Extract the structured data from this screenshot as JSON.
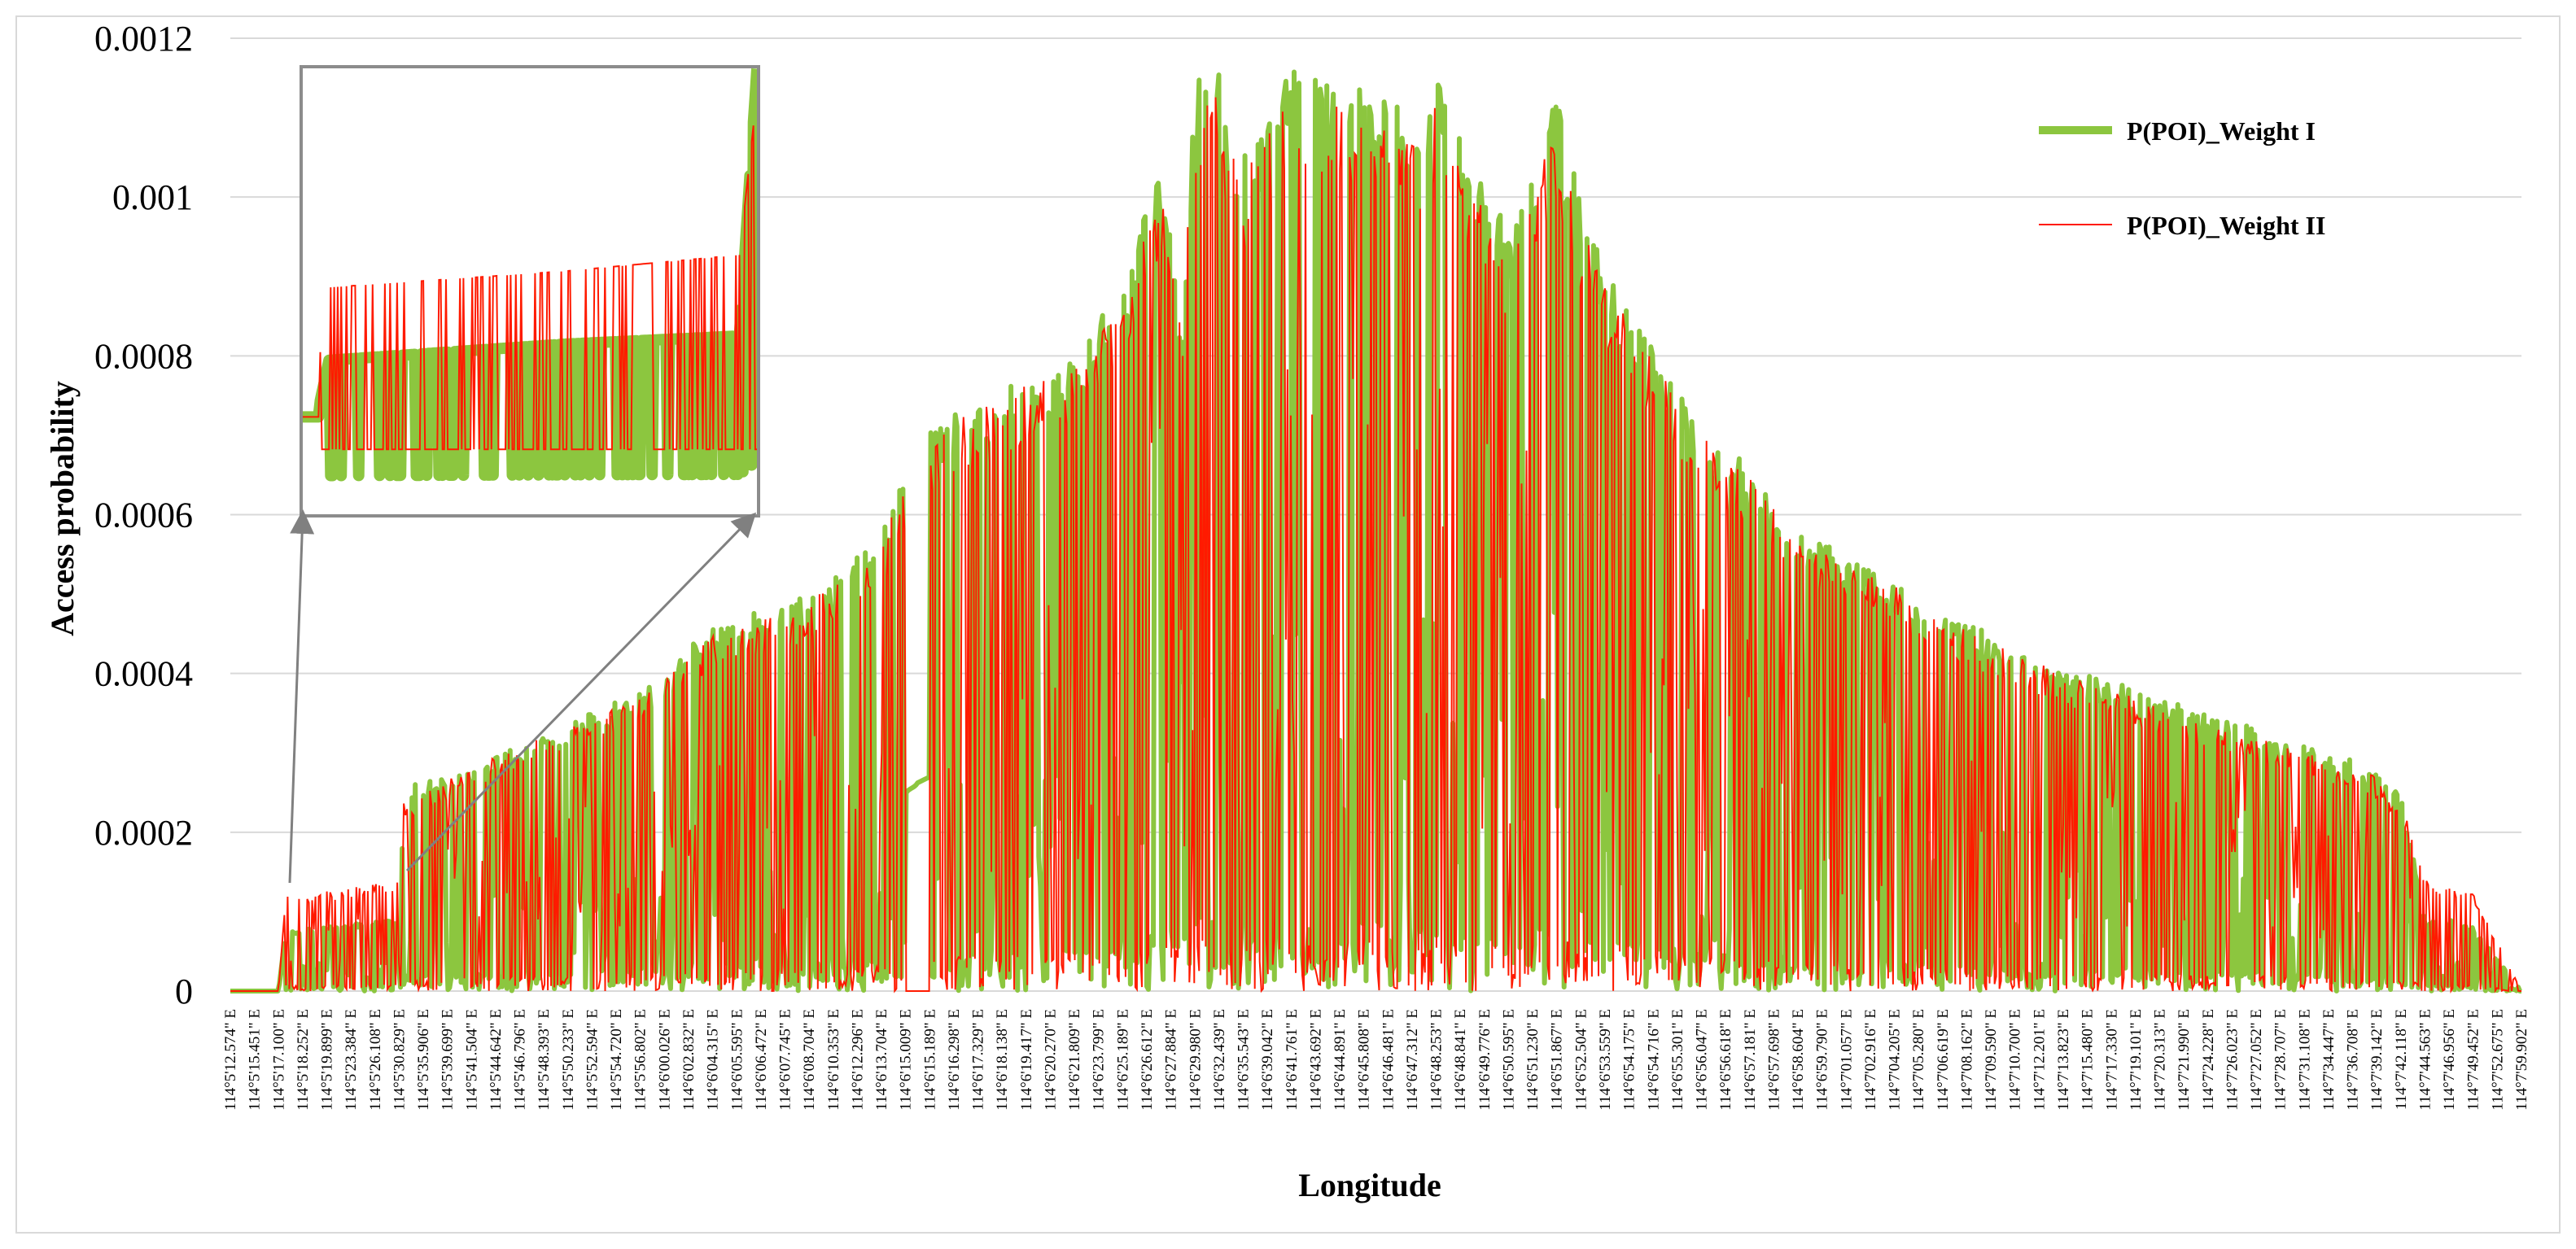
{
  "chart_data": {
    "type": "line",
    "title": "",
    "xlabel": "Longitude",
    "ylabel": "Access probability",
    "ylim": [
      0,
      0.0012
    ],
    "yticks": [
      "0",
      "0.0002",
      "0.0004",
      "0.0006",
      "0.0008",
      "0.001",
      "0.0012"
    ],
    "grid": "horizontal",
    "legend_position": "top-right",
    "inset": "zoomed view of first section, upper-left",
    "colors": {
      "weight1": "#8cc63f",
      "weight2": "#ff1a00",
      "grid": "#d9d9d9",
      "frame": "#d9d9d9",
      "arrow": "#808080"
    },
    "x_tick_labels": [
      "114°5'12.574\" E",
      "114°5'15.451\" E",
      "114°5'17.100\" E",
      "114°5'18.252\" E",
      "114°5'19.899\" E",
      "114°5'23.384\" E",
      "114°5'26.108\" E",
      "114°5'30.829\" E",
      "114°5'35.906\" E",
      "114°5'39.699\" E",
      "114°5'41.504\" E",
      "114°5'44.642\" E",
      "114°5'46.796\" E",
      "114°5'48.393\" E",
      "114°5'50.233\" E",
      "114°5'52.594\" E",
      "114°5'54.720\" E",
      "114°5'56.802\" E",
      "114°6'00.026\" E",
      "114°6'02.832\" E",
      "114°6'04.315\" E",
      "114°6'05.595\" E",
      "114°6'06.472\" E",
      "114°6'07.745\" E",
      "114°6'08.704\" E",
      "114°6'10.353\" E",
      "114°6'12.296\" E",
      "114°6'13.704\" E",
      "114°6'15.009\" E",
      "114°6'15.189\" E",
      "114°6'16.298\" E",
      "114°6'17.329\" E",
      "114°6'18.138\" E",
      "114°6'19.417\" E",
      "114°6'20.270\" E",
      "114°6'21.809\" E",
      "114°6'23.799\" E",
      "114°6'25.189\" E",
      "114°6'26.612\" E",
      "114°6'27.884\" E",
      "114°6'29.980\" E",
      "114°6'32.439\" E",
      "114°6'35.543\" E",
      "114°6'39.042\" E",
      "114°6'41.761\" E",
      "114°6'43.692\" E",
      "114°6'44.891\" E",
      "114°6'45.808\" E",
      "114°6'46.481\" E",
      "114°6'47.312\" E",
      "114°6'48.253\" E",
      "114°6'48.841\" E",
      "114°6'49.776\" E",
      "114°6'50.595\" E",
      "114°6'51.230\" E",
      "114°6'51.867\" E",
      "114°6'52.504\" E",
      "114°6'53.559\" E",
      "114°6'54.175\" E",
      "114°6'54.716\" E",
      "114°6'55.301\" E",
      "114°6'56.047\" E",
      "114°6'56.618\" E",
      "114°6'57.181\" E",
      "114°6'57.698\" E",
      "114°6'58.604\" E",
      "114°6'59.790\" E",
      "114°7'01.057\" E",
      "114°7'02.916\" E",
      "114°7'04.205\" E",
      "114°7'05.280\" E",
      "114°7'06.619\" E",
      "114°7'08.162\" E",
      "114°7'09.590\" E",
      "114°7'10.700\" E",
      "114°7'12.201\" E",
      "114°7'13.823\" E",
      "114°7'15.480\" E",
      "114°7'17.330\" E",
      "114°7'19.101\" E",
      "114°7'20.313\" E",
      "114°7'21.990\" E",
      "114°7'24.228\" E",
      "114°7'26.023\" E",
      "114°7'27.052\" E",
      "114°7'28.707\" E",
      "114°7'31.108\" E",
      "114°7'34.447\" E",
      "114°7'36.708\" E",
      "114°7'39.142\" E",
      "114°7'42.118\" E",
      "114°7'44.563\" E",
      "114°7'46.956\" E",
      "114°7'49.452\" E",
      "114°7'52.675\" E",
      "114°7'59.902\" E"
    ],
    "series": [
      {
        "name": "P(POI)_Weight I",
        "envelope_x": [
          0,
          2,
          2.3,
          5,
          7,
          7.2,
          12,
          18,
          19.5,
          20,
          24,
          27,
          27.6,
          28,
          28.1,
          28.4,
          28.5,
          29,
          32,
          35,
          37,
          38.5,
          39.5,
          40,
          41,
          42,
          44,
          46,
          47,
          48,
          49.5,
          50,
          51,
          52,
          53,
          55,
          56,
          57,
          59,
          61,
          63,
          65,
          67,
          69,
          71,
          73,
          76,
          79,
          82,
          85,
          88,
          89,
          89.6,
          90,
          91,
          91.5,
          92,
          92.5,
          93,
          95
        ],
        "envelope_y": [
          0,
          0,
          7.5e-05,
          8.5e-05,
          9e-05,
          0.000255,
          0.00031,
          0.000395,
          0.00045,
          0.00046,
          0.0005,
          0.000575,
          0.000635,
          0.000655,
          0.000665,
          0.00068,
          0.00069,
          0.00071,
          0.00076,
          0.0008,
          0.0009,
          0.00104,
          0.00087,
          0.00116,
          0.00116,
          0.00105,
          0.00116,
          0.00116,
          0.00114,
          0.00113,
          0.00108,
          0.00115,
          0.00108,
          0.00103,
          0.00095,
          0.00113,
          0.00099,
          0.00091,
          0.00081,
          0.00071,
          0.00066,
          0.00058,
          0.00055,
          0.00052,
          0.00048,
          0.00045,
          0.00041,
          0.00038,
          0.00035,
          0.00032,
          0.00029,
          0.000275,
          0.00026,
          0.000255,
          9e-05,
          9e-05,
          9e-05,
          8.5e-05,
          8e-05,
          0
        ]
      },
      {
        "name": "P(POI)_Weight II",
        "envelope_x": [
          0,
          2,
          2.3,
          5,
          7,
          7.2,
          12,
          18,
          19.5,
          20,
          24,
          27,
          27.6,
          28,
          28.1,
          28.4,
          28.5,
          29,
          32,
          35,
          37,
          38.5,
          39.5,
          40,
          41,
          42,
          44,
          46,
          47,
          48,
          49.5,
          50,
          51,
          52,
          53,
          55,
          56,
          57,
          59,
          61,
          63,
          65,
          67,
          69,
          71,
          73,
          76,
          79,
          82,
          85,
          88,
          89,
          89.6,
          90,
          91,
          91.5,
          92,
          92.5,
          93,
          95
        ],
        "envelope_y": [
          0,
          0,
          0.00012,
          0.00013,
          0.00014,
          0.00024,
          0.00031,
          0.00039,
          0.00044,
          0.00045,
          0.00049,
          0.00056,
          0.00062,
          0.00064,
          0.00065,
          0.00066,
          0.00068,
          0.0007,
          0.00075,
          0.00079,
          0.00088,
          0.00102,
          0.00086,
          0.00113,
          0.00113,
          0.00103,
          0.00113,
          0.00113,
          0.00111,
          0.0011,
          0.00106,
          0.00112,
          0.00106,
          0.00101,
          0.00093,
          0.0011,
          0.00097,
          0.00089,
          0.0008,
          0.0007,
          0.00065,
          0.00057,
          0.00054,
          0.00051,
          0.00047,
          0.00044,
          0.0004,
          0.00037,
          0.00034,
          0.00031,
          0.00028,
          0.00027,
          0.00025,
          0.00024,
          0.00014,
          0.000135,
          0.00013,
          0.00013,
          0.000125,
          0
        ]
      }
    ]
  }
}
